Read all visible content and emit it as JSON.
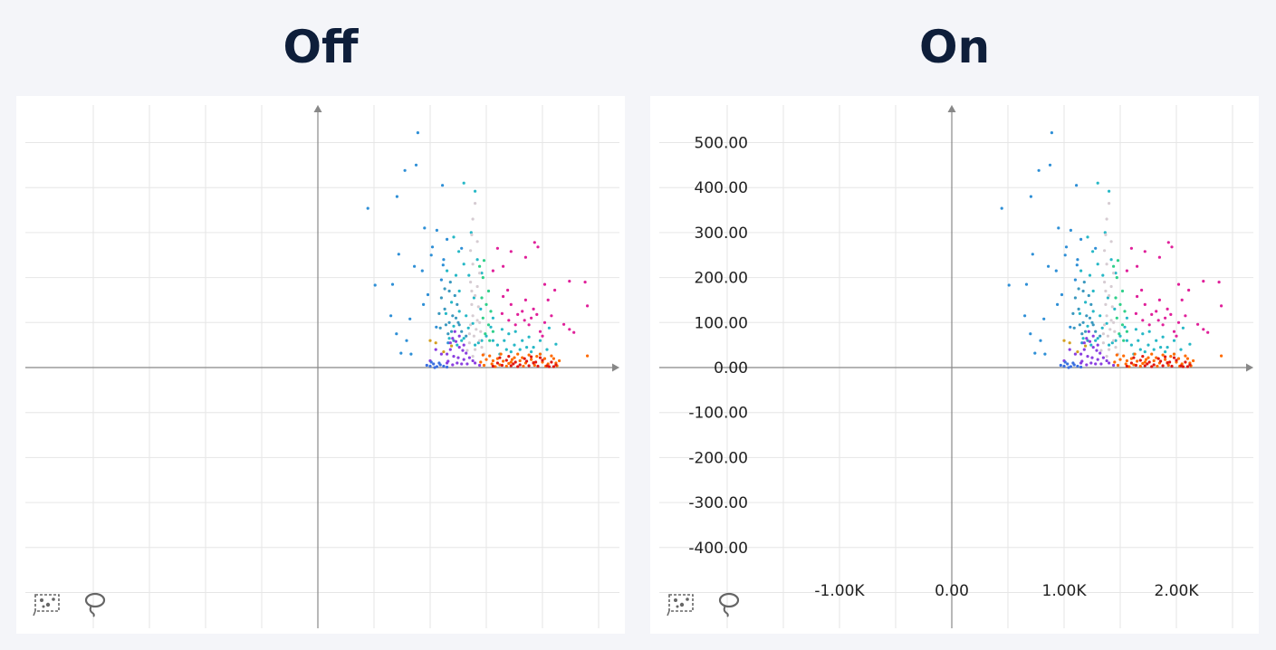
{
  "panels": [
    {
      "id": "off",
      "title": "Off",
      "show_labels": false
    },
    {
      "id": "on",
      "title": "On",
      "show_labels": true
    }
  ],
  "toolbar": {
    "icons": [
      "scatter-select-icon",
      "lasso-icon"
    ]
  },
  "chart_data": {
    "type": "scatter",
    "title": "",
    "xlabel": "",
    "ylabel": "",
    "xlim": [
      -2600,
      2700
    ],
    "ylim": [
      -575,
      575
    ],
    "grid": true,
    "x_ticks": [
      -1000,
      0,
      1000,
      2000
    ],
    "x_tick_labels": [
      "-1.00K",
      "0.00",
      "1.00K",
      "2.00K"
    ],
    "y_ticks": [
      500,
      400,
      300,
      200,
      100,
      0,
      -100,
      -200,
      -300,
      -400
    ],
    "y_tick_labels": [
      "500.00",
      "400.00",
      "300.00",
      "200.00",
      "100.00",
      "0.00",
      "-100.00",
      "-200.00",
      "-300.00",
      "-400.00"
    ],
    "series": [
      {
        "color": "#2e8fd6",
        "points": [
          [
            890,
            522
          ],
          [
            875,
            450
          ],
          [
            775,
            438
          ],
          [
            705,
            380
          ],
          [
            445,
            354
          ],
          [
            1110,
            405
          ],
          [
            950,
            310
          ],
          [
            720,
            252
          ],
          [
            1060,
            305
          ],
          [
            510,
            183
          ],
          [
            665,
            185
          ],
          [
            1010,
            250
          ],
          [
            1020,
            268
          ],
          [
            1150,
            285
          ],
          [
            1280,
            265
          ],
          [
            650,
            115
          ],
          [
            860,
            225
          ],
          [
            930,
            215
          ],
          [
            1115,
            228
          ],
          [
            1100,
            195
          ],
          [
            820,
            108
          ],
          [
            940,
            140
          ],
          [
            980,
            162
          ],
          [
            1055,
            90
          ],
          [
            700,
            75
          ],
          [
            790,
            60
          ],
          [
            1160,
            55
          ],
          [
            1120,
            240
          ],
          [
            740,
            32
          ],
          [
            830,
            30
          ]
        ]
      },
      {
        "color": "#26b8c6",
        "points": [
          [
            1300,
            410
          ],
          [
            1400,
            392
          ],
          [
            1365,
            300
          ],
          [
            1210,
            290
          ],
          [
            1255,
            258
          ],
          [
            1300,
            230
          ],
          [
            1150,
            215
          ],
          [
            1230,
            205
          ],
          [
            1345,
            205
          ],
          [
            1390,
            155
          ],
          [
            1420,
            240
          ],
          [
            1460,
            210
          ],
          [
            1260,
            170
          ],
          [
            1190,
            145
          ],
          [
            1140,
            120
          ],
          [
            1260,
            125
          ],
          [
            1320,
            115
          ],
          [
            1380,
            98
          ],
          [
            1450,
            130
          ],
          [
            1560,
            110
          ],
          [
            1640,
            85
          ],
          [
            1700,
            75
          ],
          [
            1750,
            50
          ],
          [
            1820,
            60
          ],
          [
            1880,
            68
          ],
          [
            1920,
            45
          ],
          [
            2040,
            40
          ],
          [
            2060,
            88
          ],
          [
            1980,
            60
          ],
          [
            1210,
            92
          ],
          [
            1560,
            60
          ],
          [
            1600,
            50
          ],
          [
            1680,
            40
          ],
          [
            1720,
            35
          ],
          [
            1500,
            70
          ],
          [
            1460,
            60
          ],
          [
            1430,
            55
          ],
          [
            1800,
            40
          ],
          [
            1170,
            65
          ],
          [
            1280,
            60
          ],
          [
            1660,
            60
          ],
          [
            1760,
            80
          ],
          [
            1860,
            45
          ],
          [
            1900,
            35
          ],
          [
            1540,
            90
          ],
          [
            1620,
            30
          ],
          [
            1980,
            30
          ],
          [
            2120,
            52
          ],
          [
            1340,
            88
          ],
          [
            1300,
            65
          ],
          [
            1240,
            50
          ],
          [
            1400,
            50
          ]
        ]
      },
      {
        "color": "#3a98be",
        "points": [
          [
            1100,
            155
          ],
          [
            1130,
            130
          ],
          [
            1170,
            100
          ],
          [
            1200,
            115
          ],
          [
            1230,
            110
          ],
          [
            1260,
            95
          ],
          [
            1190,
            80
          ],
          [
            1160,
            75
          ],
          [
            1210,
            60
          ],
          [
            1280,
            80
          ],
          [
            1320,
            70
          ],
          [
            1240,
            140
          ],
          [
            1170,
            170
          ],
          [
            1130,
            175
          ],
          [
            1090,
            88
          ],
          [
            1180,
            190
          ],
          [
            1220,
            160
          ],
          [
            1080,
            120
          ],
          [
            1250,
            100
          ],
          [
            1140,
            95
          ]
        ]
      },
      {
        "color": "#d6ccd2",
        "points": [
          [
            1400,
            365
          ],
          [
            1380,
            330
          ],
          [
            1370,
            295
          ],
          [
            1360,
            260
          ],
          [
            1420,
            280
          ],
          [
            1380,
            230
          ],
          [
            1440,
            210
          ],
          [
            1360,
            190
          ],
          [
            1420,
            180
          ],
          [
            1400,
            160
          ],
          [
            1370,
            140
          ],
          [
            1430,
            135
          ],
          [
            1380,
            115
          ],
          [
            1420,
            105
          ],
          [
            1360,
            95
          ],
          [
            1410,
            85
          ],
          [
            1390,
            70
          ],
          [
            1440,
            60
          ],
          [
            1350,
            55
          ],
          [
            1460,
            45
          ],
          [
            1400,
            40
          ],
          [
            1330,
            38
          ],
          [
            1480,
            30
          ],
          [
            1380,
            25
          ],
          [
            1450,
            80
          ],
          [
            1350,
            75
          ],
          [
            1440,
            100
          ],
          [
            1370,
            170
          ]
        ]
      },
      {
        "color": "#2fd08a",
        "points": [
          [
            1480,
            238
          ],
          [
            1520,
            170
          ],
          [
            1500,
            140
          ],
          [
            1540,
            125
          ],
          [
            1470,
            110
          ],
          [
            1520,
            95
          ],
          [
            1560,
            80
          ],
          [
            1490,
            75
          ],
          [
            1530,
            60
          ],
          [
            1440,
            225
          ],
          [
            1470,
            200
          ],
          [
            1460,
            155
          ]
        ]
      },
      {
        "color": "#e0209a",
        "points": [
          [
            1600,
            265
          ],
          [
            1930,
            278
          ],
          [
            1960,
            268
          ],
          [
            1720,
            258
          ],
          [
            1560,
            215
          ],
          [
            1650,
            225
          ],
          [
            1850,
            245
          ],
          [
            2240,
            192
          ],
          [
            2380,
            190
          ],
          [
            2020,
            185
          ],
          [
            2110,
            172
          ],
          [
            1690,
            172
          ],
          [
            1650,
            158
          ],
          [
            1850,
            150
          ],
          [
            2050,
            150
          ],
          [
            2400,
            137
          ],
          [
            1920,
            130
          ],
          [
            1780,
            118
          ],
          [
            1840,
            105
          ],
          [
            1950,
            118
          ],
          [
            2020,
            100
          ],
          [
            2190,
            96
          ],
          [
            2240,
            85
          ],
          [
            2280,
            78
          ],
          [
            1880,
            95
          ],
          [
            1720,
            140
          ],
          [
            1640,
            120
          ],
          [
            1980,
            80
          ],
          [
            1760,
            95
          ],
          [
            2080,
            115
          ],
          [
            1900,
            110
          ],
          [
            1820,
            125
          ],
          [
            1700,
            105
          ],
          [
            2000,
            70
          ]
        ]
      },
      {
        "color": "#8b3ee0",
        "points": [
          [
            1200,
            65
          ],
          [
            1230,
            58
          ],
          [
            1260,
            45
          ],
          [
            1290,
            38
          ],
          [
            1320,
            32
          ],
          [
            1180,
            40
          ],
          [
            1150,
            30
          ],
          [
            1210,
            25
          ],
          [
            1250,
            22
          ],
          [
            1300,
            18
          ],
          [
            1350,
            22
          ],
          [
            1380,
            15
          ],
          [
            1160,
            14
          ],
          [
            1240,
            10
          ],
          [
            1280,
            8
          ],
          [
            1330,
            8
          ],
          [
            1200,
            6
          ],
          [
            1150,
            10
          ],
          [
            1100,
            30
          ],
          [
            1050,
            40
          ],
          [
            1260,
            70
          ],
          [
            1220,
            80
          ],
          [
            1180,
            55
          ],
          [
            1300,
            50
          ],
          [
            1400,
            10
          ],
          [
            1440,
            5
          ],
          [
            1000,
            15
          ]
        ]
      },
      {
        "color": "#3a6fe0",
        "points": [
          [
            970,
            5
          ],
          [
            1000,
            3
          ],
          [
            1030,
            8
          ],
          [
            1060,
            2
          ],
          [
            1090,
            6
          ],
          [
            1120,
            3
          ],
          [
            1150,
            1
          ],
          [
            1040,
            0
          ],
          [
            1080,
            10
          ],
          [
            1010,
            12
          ]
        ]
      },
      {
        "color": "#ff6a00",
        "points": [
          [
            1450,
            12
          ],
          [
            1500,
            18
          ],
          [
            1550,
            8
          ],
          [
            1600,
            20
          ],
          [
            1650,
            14
          ],
          [
            1700,
            9
          ],
          [
            1750,
            22
          ],
          [
            1800,
            15
          ],
          [
            1850,
            10
          ],
          [
            1900,
            18
          ],
          [
            1950,
            25
          ],
          [
            2000,
            12
          ],
          [
            2050,
            8
          ],
          [
            2100,
            20
          ],
          [
            2150,
            15
          ],
          [
            1480,
            5
          ],
          [
            1530,
            26
          ],
          [
            1580,
            2
          ],
          [
            1630,
            30
          ],
          [
            1680,
            3
          ],
          [
            1730,
            18
          ],
          [
            1780,
            30
          ],
          [
            1830,
            3
          ],
          [
            1880,
            28
          ],
          [
            1930,
            5
          ],
          [
            1980,
            30
          ],
          [
            2030,
            3
          ],
          [
            2080,
            26
          ],
          [
            2130,
            4
          ],
          [
            2400,
            26
          ],
          [
            1470,
            28
          ],
          [
            1560,
            15
          ],
          [
            1620,
            6
          ],
          [
            1720,
            12
          ],
          [
            1820,
            22
          ],
          [
            1920,
            11
          ],
          [
            2020,
            20
          ],
          [
            2120,
            10
          ]
        ]
      },
      {
        "color": "#e01810",
        "points": [
          [
            1560,
            3
          ],
          [
            1600,
            10
          ],
          [
            1640,
            5
          ],
          [
            1680,
            16
          ],
          [
            1720,
            4
          ],
          [
            1760,
            12
          ],
          [
            1800,
            6
          ],
          [
            1840,
            20
          ],
          [
            1880,
            4
          ],
          [
            1920,
            10
          ],
          [
            1960,
            3
          ],
          [
            2000,
            16
          ],
          [
            2040,
            4
          ],
          [
            2080,
            12
          ],
          [
            2120,
            6
          ],
          [
            1700,
            25
          ],
          [
            1860,
            14
          ],
          [
            1980,
            22
          ],
          [
            1620,
            22
          ],
          [
            1780,
            2
          ],
          [
            1900,
            24
          ],
          [
            2060,
            2
          ],
          [
            1740,
            8
          ],
          [
            1940,
            12
          ],
          [
            2100,
            2
          ]
        ]
      },
      {
        "color": "#d4a020",
        "points": [
          [
            1050,
            55
          ],
          [
            1120,
            35
          ],
          [
            1190,
            48
          ],
          [
            1000,
            60
          ]
        ]
      }
    ]
  }
}
